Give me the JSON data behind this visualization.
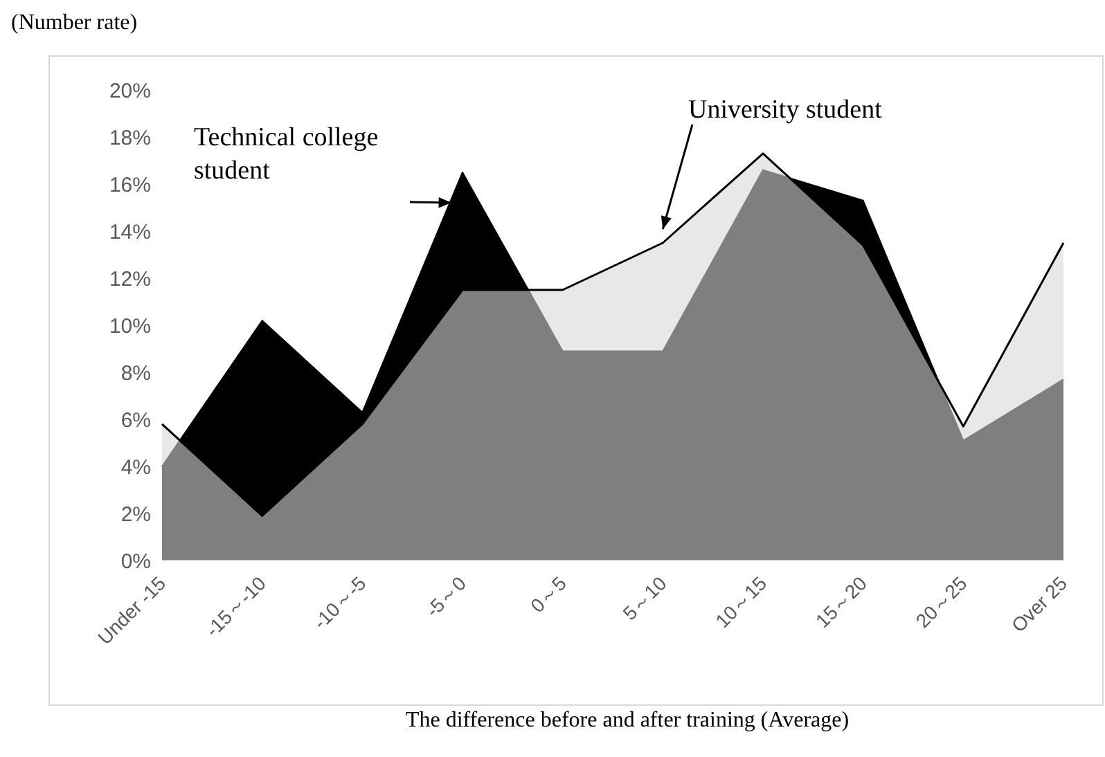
{
  "chart_data": {
    "type": "area",
    "ylabel": "(Number rate)",
    "xlabel": "The difference before and after training (Average)",
    "categories": [
      "Under -15",
      "-15～-10",
      "-10～-5",
      "-5～0",
      "0～5",
      "5～10",
      "10～15",
      "15～20",
      "20～25",
      "Over 25"
    ],
    "series": [
      {
        "name": "Technical college student",
        "color": "#000000",
        "values": [
          4.0,
          10.2,
          6.3,
          16.5,
          8.9,
          8.9,
          16.6,
          15.3,
          5.1,
          7.7
        ]
      },
      {
        "name": "University student",
        "color": "#d8d8d8",
        "values": [
          5.8,
          1.9,
          5.8,
          11.5,
          11.5,
          13.5,
          17.3,
          13.4,
          5.7,
          13.5
        ]
      }
    ],
    "ylim": [
      0,
      20
    ],
    "yticks": [
      {
        "value": 0,
        "label": "0%"
      },
      {
        "value": 2,
        "label": "2%"
      },
      {
        "value": 4,
        "label": "4%"
      },
      {
        "value": 6,
        "label": "6%"
      },
      {
        "value": 8,
        "label": "8%"
      },
      {
        "value": 10,
        "label": "10%"
      },
      {
        "value": 12,
        "label": "12%"
      },
      {
        "value": 14,
        "label": "14%"
      },
      {
        "value": 16,
        "label": "16%"
      },
      {
        "value": 18,
        "label": "18%"
      },
      {
        "value": 20,
        "label": "20%"
      }
    ],
    "grid": false,
    "legend": false
  }
}
